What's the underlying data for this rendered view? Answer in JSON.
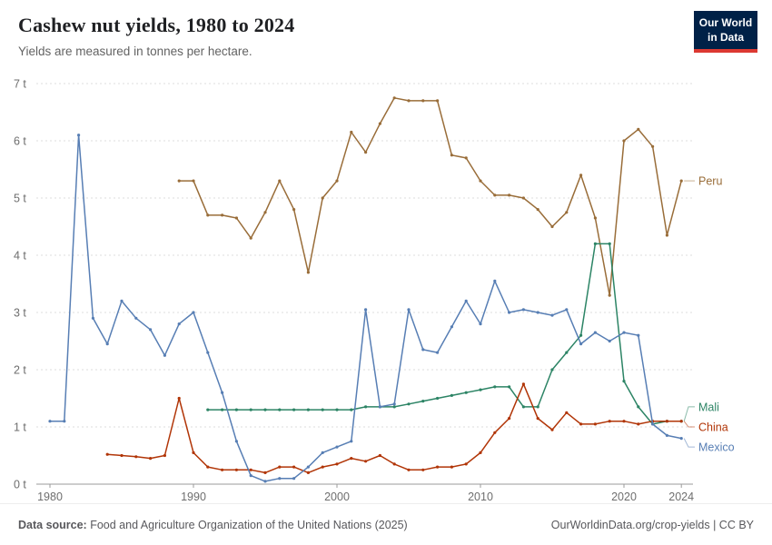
{
  "header": {
    "title": "Cashew nut yields, 1980 to 2024",
    "subtitle": "Yields are measured in tonnes per hectare.",
    "logo": {
      "line1": "Our World",
      "line2": "in Data",
      "bg_color": "#002147",
      "accent_color": "#dc3932"
    }
  },
  "footer": {
    "source_label": "Data source:",
    "source_text": " Food and Agriculture Organization of the United Nations (2025)",
    "right_text": "OurWorldinData.org/crop-yields | CC BY"
  },
  "chart_data": {
    "type": "line",
    "title": "Cashew nut yields, 1980 to 2024",
    "subtitle": "Yields are measured in tonnes per hectare.",
    "xlabel": "",
    "ylabel": "tonnes per hectare",
    "xlim": [
      1979.5,
      2025.5
    ],
    "ylim": [
      0,
      7
    ],
    "grid": "horizontal-dashed",
    "y_ticks": [
      0,
      1,
      2,
      3,
      4,
      5,
      6,
      7
    ],
    "y_tick_format": "{v} t",
    "x_ticks": [
      1980,
      1990,
      2000,
      2010,
      2020,
      2024
    ],
    "legend_position": "right-end-labels",
    "axis_text_color": "#6e6e6e",
    "gridline_color": "#dedede",
    "axis_line_color": "#9b9b9b",
    "series": [
      {
        "name": "Peru",
        "color": "#996D39",
        "start_year": 1989,
        "label_value": 5.3,
        "values": [
          5.3,
          5.3,
          4.7,
          4.7,
          4.65,
          4.3,
          4.75,
          5.3,
          4.8,
          3.7,
          5.0,
          5.3,
          6.15,
          5.8,
          6.3,
          6.75,
          6.7,
          6.7,
          6.7,
          5.75,
          5.7,
          5.3,
          5.05,
          5.05,
          5.0,
          4.8,
          4.5,
          4.75,
          5.4,
          4.65,
          3.3,
          6.0,
          6.2,
          5.9,
          4.35,
          5.3
        ]
      },
      {
        "name": "Mali",
        "color": "#2C8465",
        "start_year": 1991,
        "label_value": 1.35,
        "values": [
          1.3,
          1.3,
          1.3,
          1.3,
          1.3,
          1.3,
          1.3,
          1.3,
          1.3,
          1.3,
          1.3,
          1.35,
          1.35,
          1.35,
          1.4,
          1.45,
          1.5,
          1.55,
          1.6,
          1.65,
          1.7,
          1.7,
          1.35,
          1.35,
          2.0,
          2.3,
          2.6,
          4.2,
          4.2,
          1.8,
          1.35,
          1.05,
          1.1,
          1.1
        ]
      },
      {
        "name": "China",
        "color": "#B13507",
        "start_year": 1984,
        "label_value": 1.0,
        "values": [
          0.52,
          0.5,
          0.48,
          0.45,
          0.5,
          1.5,
          0.55,
          0.3,
          0.25,
          0.25,
          0.25,
          0.2,
          0.3,
          0.3,
          0.2,
          0.3,
          0.35,
          0.45,
          0.4,
          0.5,
          0.35,
          0.25,
          0.25,
          0.3,
          0.3,
          0.35,
          0.55,
          0.9,
          1.15,
          1.75,
          1.15,
          0.95,
          1.25,
          1.05,
          1.05,
          1.1,
          1.1,
          1.05,
          1.1,
          1.1,
          1.1
        ]
      },
      {
        "name": "Mexico",
        "color": "#577EB4",
        "start_year": 1980,
        "label_value": 0.65,
        "values": [
          1.1,
          1.1,
          6.1,
          2.9,
          2.45,
          3.2,
          2.9,
          2.7,
          2.25,
          2.8,
          3.0,
          2.3,
          1.6,
          0.75,
          0.15,
          0.05,
          0.1,
          0.1,
          0.3,
          0.55,
          0.65,
          0.75,
          3.05,
          1.35,
          1.4,
          3.05,
          2.35,
          2.3,
          2.75,
          3.2,
          2.8,
          3.55,
          3.0,
          3.05,
          3.0,
          2.95,
          3.05,
          2.45,
          2.65,
          2.5,
          2.65,
          2.6,
          1.05,
          0.85,
          0.8
        ]
      }
    ]
  }
}
